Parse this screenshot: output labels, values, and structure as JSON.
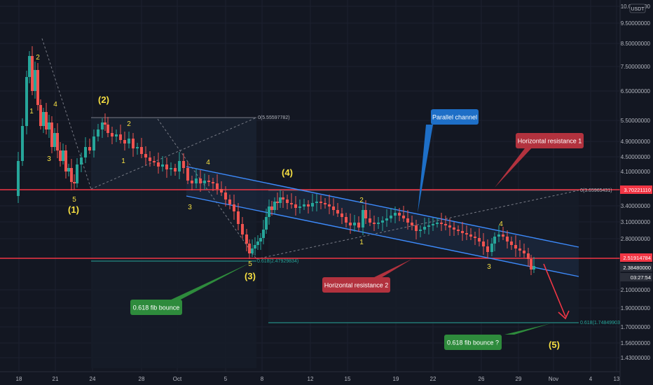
{
  "currency_badge": "USDT",
  "price_axis": {
    "ticks": [
      "10.0000000",
      "9.50000000",
      "8.50000000",
      "7.50000000",
      "6.50000000",
      "5.50000000",
      "4.90000000",
      "4.50000000",
      "4.10000000",
      "3.40000000",
      "3.10000000",
      "2.80000000",
      "2.10000000",
      "1.90000000",
      "1.70000000",
      "1.56000000",
      "1.43000000"
    ],
    "markers": [
      {
        "label": "3.70221110",
        "color": "#f23645"
      },
      {
        "label": "2.51914784",
        "color": "#f23645"
      },
      {
        "label": "2.38480000",
        "color": "#2a2e39"
      },
      {
        "label": "03:27:54",
        "color": "#2a2e39"
      }
    ]
  },
  "time_axis": {
    "ticks": [
      "18",
      "21",
      "24",
      "28",
      "Oct",
      "5",
      "8",
      "12",
      "15",
      "19",
      "22",
      "26",
      "29",
      "Nov",
      "4",
      "13"
    ]
  },
  "annotations": {
    "parallel_channel": "Parallel channel",
    "horizontal_resistance_1": "Horizontal resistance 1",
    "horizontal_resistance_2": "Horizontal resistance 2",
    "fib_bounce": "0.618 fib bounce",
    "fib_bounce_q": "0.618 fib bounce ?"
  },
  "fib_labels": {
    "top_left": "0(5.55597782)",
    "left_618": "0.618(2.47929834)",
    "right_top": "0(3.65965431)",
    "right_618": "0.618(1.74849903)"
  },
  "waves": {
    "major": [
      "(1)",
      "(2)",
      "(3)",
      "(4)",
      "(5)"
    ],
    "minor": [
      "1",
      "2",
      "3",
      "4",
      "5"
    ]
  },
  "colors": {
    "background": "#131722",
    "up_candle": "#26a69a",
    "down_candle": "#ef5350",
    "resistance": "#f23645",
    "channel": "#2962ff",
    "fib": "#26a69a",
    "wave_label": "#f7e042",
    "callout_blue": "#1e6fc7",
    "callout_red": "#b2323e",
    "callout_green": "#2e8b3c"
  },
  "chart_data": {
    "type": "candlestick",
    "symbol_quote": "USDT",
    "y_scale": "log",
    "ylim": [
      1.43,
      10.0
    ],
    "x_range": [
      "18",
      "13"
    ],
    "horizontal_levels": [
      3.7022111,
      2.51914784
    ],
    "last_price": 2.3848,
    "fib_levels": [
      {
        "label": "0",
        "value": 5.55597782
      },
      {
        "label": "0.618",
        "value": 2.47929834
      },
      {
        "label": "0",
        "value": 3.65965431
      },
      {
        "label": "0.618",
        "value": 1.74849903
      }
    ]
  }
}
